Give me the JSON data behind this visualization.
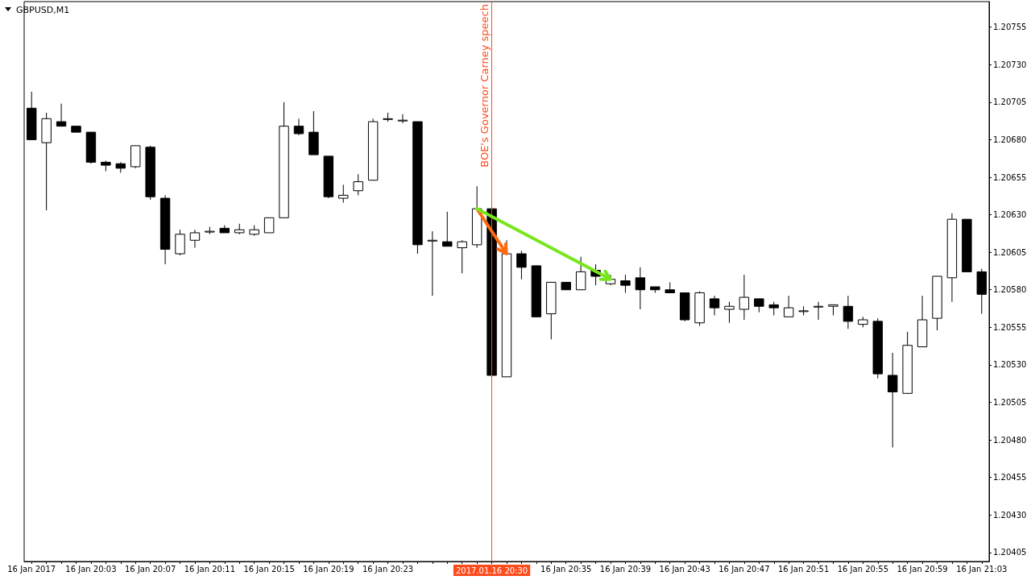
{
  "chart_data": {
    "type": "candlestick",
    "title": "GBPUSD,M1",
    "categories": [
      "16 Jan 2017",
      null,
      null,
      null,
      "16 Jan 20:03",
      null,
      null,
      null,
      "16 Jan 20:07",
      null,
      null,
      null,
      "16 Jan 20:11",
      null,
      null,
      null,
      "16 Jan 20:15",
      null,
      null,
      null,
      "16 Jan 20:19",
      null,
      null,
      null,
      "16 Jan 20:23",
      null,
      null,
      null,
      null,
      null,
      null,
      "2017.01.16 20:30",
      null,
      null,
      null,
      null,
      "16 Jan 20:35",
      null,
      null,
      null,
      "16 Jan 20:39",
      null,
      null,
      null,
      "16 Jan 20:43",
      null,
      null,
      null,
      "16 Jan 20:47",
      null,
      null,
      null,
      "16 Jan 20:51",
      null,
      null,
      null,
      "16 Jan 20:55",
      null,
      null,
      null,
      "16 Jan 20:59",
      null,
      null,
      null,
      "16 Jan 21:03"
    ],
    "ohlc": [
      [
        1.20701,
        1.20712,
        1.2068,
        1.2068
      ],
      [
        1.20678,
        1.20698,
        1.20633,
        1.20694
      ],
      [
        1.20692,
        1.20704,
        1.20689,
        1.20689
      ],
      [
        1.20689,
        1.20689,
        1.20685,
        1.20685
      ],
      [
        1.20685,
        1.20685,
        1.20664,
        1.20665
      ],
      [
        1.20665,
        1.20666,
        1.20659,
        1.20663
      ],
      [
        1.20664,
        1.20665,
        1.20658,
        1.20661
      ],
      [
        1.20662,
        1.20676,
        1.20661,
        1.20676
      ],
      [
        1.20675,
        1.20676,
        1.2064,
        1.20642
      ],
      [
        1.20641,
        1.20643,
        1.20597,
        1.20607
      ],
      [
        1.20604,
        1.2062,
        1.20603,
        1.20617
      ],
      [
        1.20613,
        1.2062,
        1.20608,
        1.20618
      ],
      [
        1.20619,
        1.20622,
        1.20617,
        1.20619
      ],
      [
        1.20621,
        1.20623,
        1.20618,
        1.20618
      ],
      [
        1.20618,
        1.20624,
        1.20617,
        1.2062
      ],
      [
        1.20617,
        1.20623,
        1.20616,
        1.2062
      ],
      [
        1.20618,
        1.20628,
        1.20618,
        1.20628
      ],
      [
        1.20628,
        1.20705,
        1.20628,
        1.20689
      ],
      [
        1.20689,
        1.20694,
        1.20683,
        1.20684
      ],
      [
        1.20685,
        1.20699,
        1.2067,
        1.2067
      ],
      [
        1.20669,
        1.20669,
        1.20641,
        1.20642
      ],
      [
        1.20641,
        1.2065,
        1.20638,
        1.20643
      ],
      [
        1.20646,
        1.20657,
        1.20643,
        1.20652
      ],
      [
        1.20653,
        1.20694,
        1.20653,
        1.20692
      ],
      [
        1.20694,
        1.20698,
        1.20692,
        1.20694
      ],
      [
        1.20693,
        1.20697,
        1.20691,
        1.20693
      ],
      [
        1.20692,
        1.20692,
        1.20604,
        1.2061
      ],
      [
        1.20613,
        1.20619,
        1.20576,
        1.20613
      ],
      [
        1.20612,
        1.20632,
        1.20609,
        1.20609
      ],
      [
        1.20608,
        1.20613,
        1.20591,
        1.20612
      ],
      [
        1.2061,
        1.20649,
        1.20608,
        1.20634
      ],
      [
        1.20634,
        1.20634,
        1.20523,
        1.20523
      ],
      [
        1.20522,
        1.20613,
        1.20522,
        1.20604
      ],
      [
        1.20604,
        1.20606,
        1.20587,
        1.20595
      ],
      [
        1.20596,
        1.20596,
        1.20562,
        1.20562
      ],
      [
        1.20564,
        1.20585,
        1.20547,
        1.20585
      ],
      [
        1.20585,
        1.20585,
        1.2058,
        1.2058
      ],
      [
        1.2058,
        1.20602,
        1.2058,
        1.20592
      ],
      [
        1.20593,
        1.20597,
        1.20583,
        1.20589
      ],
      [
        1.20584,
        1.2059,
        1.20583,
        1.20587
      ],
      [
        1.20586,
        1.2059,
        1.20578,
        1.20583
      ],
      [
        1.20588,
        1.20595,
        1.20567,
        1.2058
      ],
      [
        1.20582,
        1.20582,
        1.20578,
        1.2058
      ],
      [
        1.2058,
        1.20585,
        1.20578,
        1.20578
      ],
      [
        1.20578,
        1.20578,
        1.20559,
        1.2056
      ],
      [
        1.20558,
        1.20579,
        1.20556,
        1.20578
      ],
      [
        1.20574,
        1.20576,
        1.20563,
        1.20568
      ],
      [
        1.20567,
        1.20572,
        1.20558,
        1.20569
      ],
      [
        1.20567,
        1.2059,
        1.2056,
        1.20575
      ],
      [
        1.20574,
        1.20574,
        1.20565,
        1.20569
      ],
      [
        1.2057,
        1.20572,
        1.20563,
        1.20568
      ],
      [
        1.20562,
        1.20576,
        1.20562,
        1.20568
      ],
      [
        1.20566,
        1.20569,
        1.20563,
        1.20566
      ],
      [
        1.20569,
        1.20572,
        1.2056,
        1.20569
      ],
      [
        1.20569,
        1.2057,
        1.20563,
        1.2057
      ],
      [
        1.20569,
        1.20576,
        1.20554,
        1.20559
      ],
      [
        1.20557,
        1.20562,
        1.20555,
        1.2056
      ],
      [
        1.20559,
        1.20561,
        1.20521,
        1.20524
      ],
      [
        1.20523,
        1.20538,
        1.20475,
        1.20512
      ],
      [
        1.20511,
        1.20552,
        1.20511,
        1.20543
      ],
      [
        1.20542,
        1.20576,
        1.20542,
        1.2056
      ],
      [
        1.20561,
        1.20589,
        1.20553,
        1.20589
      ],
      [
        1.20588,
        1.20631,
        1.20572,
        1.20627
      ],
      [
        1.20627,
        1.20627,
        1.20592,
        1.20592
      ],
      [
        1.20592,
        1.20594,
        1.20564,
        1.20577
      ]
    ],
    "colors": [
      "#000000",
      "#ffffff",
      "#000000",
      "#000000",
      "#000000",
      "#000000",
      "#000000",
      "#ffffff",
      "#000000",
      "#000000",
      "#ffffff",
      "#ffffff",
      "#ffffff",
      "#000000",
      "#ffffff",
      "#ffffff",
      "#ffffff",
      "#ffffff",
      "#000000",
      "#000000",
      "#000000",
      "#ffffff",
      "#ffffff",
      "#ffffff",
      "#ffffff",
      "#ffffff",
      "#000000",
      "#ffffff",
      "#000000",
      "#ffffff",
      "#ffffff",
      "#000000",
      "#ffffff",
      "#000000",
      "#000000",
      "#ffffff",
      "#000000",
      "#ffffff",
      "#000000",
      "#ffffff",
      "#000000",
      "#000000",
      "#000000",
      "#000000",
      "#000000",
      "#ffffff",
      "#000000",
      "#ffffff",
      "#ffffff",
      "#000000",
      "#000000",
      "#ffffff",
      "#ffffff",
      "#ffffff",
      "#ffffff",
      "#000000",
      "#ffffff",
      "#000000",
      "#000000",
      "#ffffff",
      "#ffffff",
      "#ffffff",
      "#ffffff",
      "#000000",
      "#000000"
    ],
    "ylim": [
      1.20399,
      1.20772
    ],
    "yticks": [
      1.20405,
      {
        "value": 1.2043,
        "label": "1.20430"
      },
      1.20455,
      {
        "value": 1.2048,
        "label": "1.20480"
      },
      1.20505,
      {
        "value": 1.2053,
        "label": "1.20530"
      },
      1.20555,
      {
        "value": 1.2058,
        "label": "1.20580"
      },
      1.20605,
      {
        "value": 1.2063,
        "label": "1.20630"
      },
      1.20655,
      {
        "value": 1.2068,
        "label": "1.20680"
      },
      1.20705,
      {
        "value": 1.2073,
        "label": "1.20730"
      },
      1.20755
    ],
    "grid": false,
    "ref_lines": [
      {
        "axis": "x",
        "value": "2017.01.16 20:30",
        "label": "BOE's Governor Carney speech",
        "color": "#ff4a1c"
      }
    ]
  }
}
